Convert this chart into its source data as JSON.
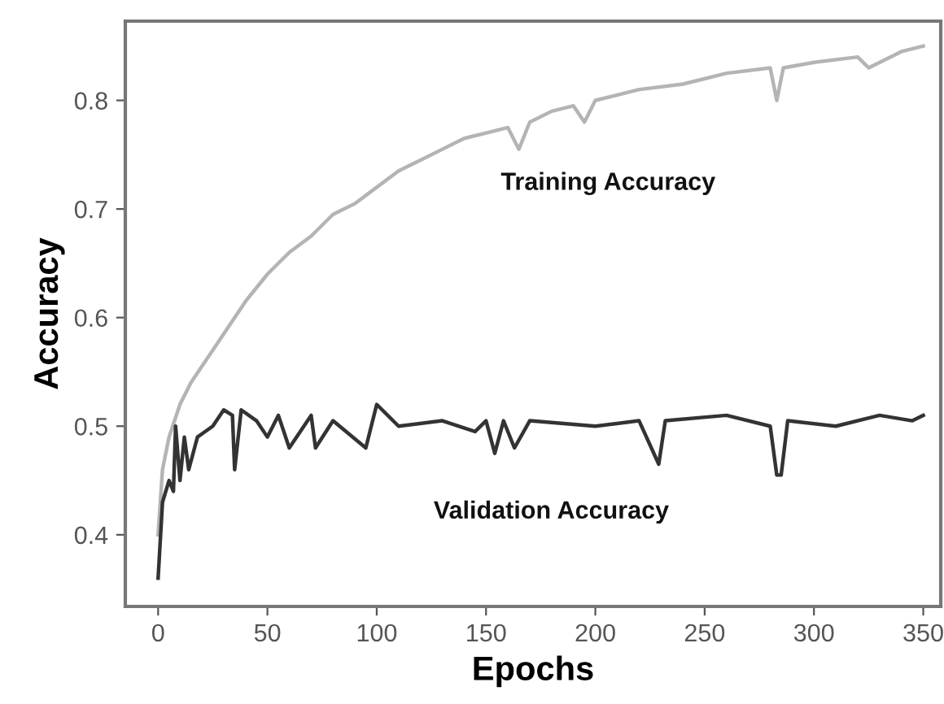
{
  "chart_data": {
    "type": "line",
    "xlabel": "Epochs",
    "ylabel": "Accuracy",
    "xlim": [
      -15,
      358
    ],
    "ylim": [
      0.334,
      0.873
    ],
    "xticks": [
      0,
      50,
      100,
      150,
      200,
      250,
      300,
      350
    ],
    "yticks": [
      0.4,
      0.5,
      0.6,
      0.7,
      0.8
    ],
    "grid": false,
    "legend": false,
    "marker": "none",
    "line_style": "solid",
    "series": [
      {
        "name": "Training Accuracy",
        "color": "#b4b4b4",
        "x": [
          0,
          2,
          5,
          10,
          15,
          20,
          30,
          40,
          50,
          60,
          70,
          80,
          90,
          100,
          110,
          120,
          130,
          140,
          150,
          160,
          165,
          170,
          180,
          190,
          195,
          200,
          220,
          240,
          260,
          280,
          283,
          286,
          300,
          320,
          325,
          340,
          350
        ],
        "values": [
          0.4,
          0.46,
          0.49,
          0.52,
          0.54,
          0.555,
          0.585,
          0.615,
          0.64,
          0.66,
          0.675,
          0.695,
          0.705,
          0.72,
          0.735,
          0.745,
          0.755,
          0.765,
          0.77,
          0.775,
          0.755,
          0.78,
          0.79,
          0.795,
          0.78,
          0.8,
          0.81,
          0.815,
          0.825,
          0.83,
          0.8,
          0.83,
          0.835,
          0.84,
          0.83,
          0.845,
          0.85
        ]
      },
      {
        "name": "Validation Accuracy",
        "color": "#333333",
        "x": [
          0,
          2,
          5,
          7,
          8,
          10,
          12,
          14,
          18,
          25,
          30,
          34,
          35,
          38,
          45,
          50,
          55,
          60,
          70,
          72,
          80,
          95,
          100,
          110,
          130,
          145,
          150,
          154,
          158,
          163,
          170,
          200,
          220,
          229,
          232,
          260,
          280,
          283,
          285,
          288,
          310,
          330,
          345,
          350
        ],
        "values": [
          0.36,
          0.43,
          0.45,
          0.44,
          0.5,
          0.45,
          0.49,
          0.46,
          0.49,
          0.5,
          0.515,
          0.51,
          0.46,
          0.515,
          0.505,
          0.49,
          0.51,
          0.48,
          0.51,
          0.48,
          0.505,
          0.48,
          0.52,
          0.5,
          0.505,
          0.495,
          0.505,
          0.475,
          0.505,
          0.48,
          0.505,
          0.5,
          0.505,
          0.465,
          0.505,
          0.51,
          0.5,
          0.455,
          0.455,
          0.505,
          0.5,
          0.51,
          0.505,
          0.51
        ]
      }
    ]
  }
}
